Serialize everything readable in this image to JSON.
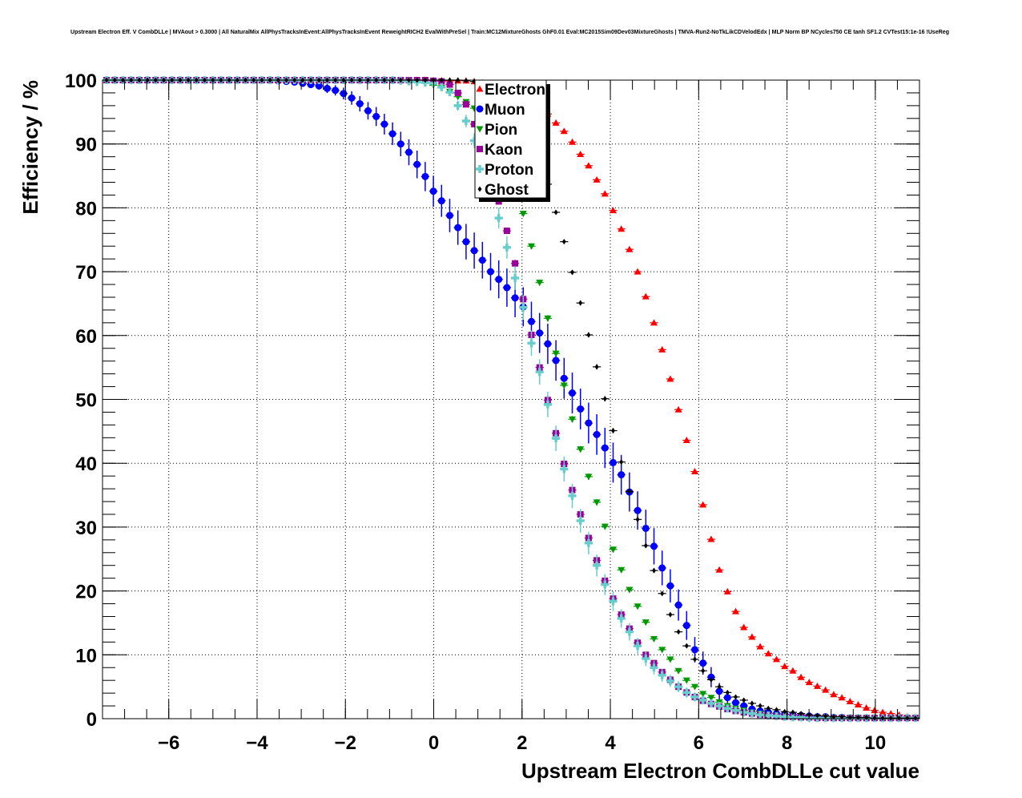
{
  "title": "Upstream Electron Eff. V CombDLLe | MVAout > 0.3000 | All NaturalMix AllPhysTracksInEvent:AllPhysTracksInEvent ReweightRICH2 EvalWithPreSel | Train:MC12MixtureGhosts GhF0.01 Eval:MC2015Sim09Dev03MixtureGhosts | TMVA-Run2-NoTkLikCDVelodEdx | MLP Norm BP NCycles750 CE tanh SF1.2 CVTest15:1e-16 !UseReg",
  "chart_data": {
    "type": "scatter",
    "title": "Upstream Electron Eff. V CombDLLe | MVAout > 0.3000 | All NaturalMix AllPhysTracksInEvent:AllPhysTracksInEvent ReweightRICH2 EvalWithPreSel | Train:MC12MixtureGhosts GhF0.01 Eval:MC2015Sim09Dev03MixtureGhosts | TMVA-Run2-NoTkLikCDVelodEdx | MLP Norm BP NCycles750 CE tanh SF1.2 CVTest15:1e-16 !UseReg",
    "xlabel": "Upstream Electron CombDLLe cut value",
    "ylabel": "Efficiency / %",
    "xlim": [
      -7.5,
      11
    ],
    "ylim": [
      0,
      100
    ],
    "grid": true,
    "legend_position": "top-center",
    "bins": {
      "start": -7.5,
      "end": 11,
      "count": 100
    },
    "xticks": [
      -6,
      -4,
      -2,
      0,
      2,
      4,
      6,
      8,
      10
    ],
    "xtick_labels": [
      "−6",
      "−4",
      "−2",
      "0",
      "2",
      "4",
      "6",
      "8",
      "10"
    ],
    "yticks": [
      0,
      10,
      20,
      30,
      40,
      50,
      60,
      70,
      80,
      90,
      100
    ],
    "ytick_labels": [
      "0",
      "10",
      "20",
      "30",
      "40",
      "50",
      "60",
      "70",
      "80",
      "90",
      "100"
    ],
    "series": [
      {
        "name": "Electron",
        "color": "#ff0000",
        "marker": "triangle-up",
        "err_scale": 0.02,
        "values": [
          100,
          100,
          100,
          100,
          100,
          100,
          100,
          100,
          100,
          100,
          100,
          100,
          100,
          100,
          100,
          100,
          100,
          100,
          100,
          100,
          100,
          100,
          100,
          100,
          100,
          100,
          100,
          100,
          100,
          100,
          100,
          100,
          100,
          100,
          100,
          100,
          100,
          100,
          100,
          100,
          99.9,
          99.9,
          99.9,
          99.9,
          99.9,
          99.8,
          99.6,
          99.3,
          98.9,
          98.4,
          97.8,
          97.2,
          96.5,
          95.7,
          94.7,
          93.3,
          92.0,
          90.3,
          88.4,
          86.6,
          84.4,
          82.2,
          79.6,
          76.7,
          73.5,
          70.0,
          66.1,
          62.0,
          57.8,
          53.2,
          48.4,
          43.6,
          38.7,
          33.5,
          28.1,
          23.3,
          19.9,
          16.8,
          14.3,
          12.8,
          11.3,
          10.2,
          9.3,
          8.2,
          7.5,
          6.5,
          5.7,
          5.1,
          4.5,
          3.8,
          3.3,
          2.7,
          2.2,
          1.7,
          1.3,
          1.0,
          0.8,
          0.6,
          0.3,
          0.1
        ]
      },
      {
        "name": "Muon",
        "color": "#0000ff",
        "marker": "circle",
        "err_scale": 0.32,
        "values": [
          100,
          100,
          100,
          100,
          100,
          100,
          100,
          100,
          100,
          100,
          100,
          100,
          100,
          100,
          100,
          100,
          100,
          100,
          100,
          100,
          100,
          99.9,
          99.8,
          99.7,
          99.5,
          99.3,
          99.1,
          98.7,
          98.4,
          97.9,
          97.2,
          96.3,
          95.2,
          94.3,
          93.1,
          91.6,
          90.0,
          88.7,
          86.8,
          84.9,
          82.6,
          81.1,
          78.8,
          76.9,
          74.7,
          73.3,
          71.8,
          70.0,
          68.8,
          67.5,
          65.9,
          64.5,
          62.2,
          60.4,
          58.7,
          56.1,
          53.3,
          51.0,
          48.5,
          46.3,
          44.5,
          42.4,
          40.1,
          38.2,
          35.5,
          32.6,
          29.8,
          27.0,
          23.6,
          20.8,
          17.8,
          14.6,
          10.8,
          8.7,
          6.5,
          4.3,
          3.3,
          2.5,
          2.0,
          1.5,
          1.2,
          1.0,
          0.8,
          0.7,
          0.6,
          0.5,
          0.4,
          0.3,
          0.3,
          0.2,
          0.2,
          0.1,
          0.1,
          0.1,
          0.1,
          0.1,
          0.1,
          0.1,
          0.1,
          0.1
        ]
      },
      {
        "name": "Pion",
        "color": "#009a00",
        "marker": "triangle-down",
        "err_scale": 0.05,
        "values": [
          100,
          100,
          100,
          100,
          100,
          100,
          100,
          100,
          100,
          100,
          100,
          100,
          100,
          100,
          100,
          100,
          100,
          100,
          100,
          100,
          100,
          100,
          100,
          100,
          100,
          100,
          100,
          100,
          100,
          100,
          100,
          100,
          100,
          100,
          100,
          99.9,
          99.9,
          99.8,
          99.7,
          99.6,
          99.2,
          98.8,
          98.2,
          97.4,
          96.6,
          95.6,
          94.4,
          92.8,
          90.5,
          87.5,
          83.5,
          79.1,
          74.0,
          68.3,
          62.7,
          57.2,
          52.2,
          46.9,
          42.2,
          37.9,
          33.9,
          30.1,
          26.5,
          23.3,
          20.2,
          17.6,
          15.1,
          12.5,
          10.8,
          9.3,
          7.5,
          6.0,
          5.0,
          3.9,
          3.3,
          2.6,
          2.0,
          1.6,
          1.3,
          1.0,
          0.8,
          0.6,
          0.5,
          0.4,
          0.3,
          0.3,
          0.2,
          0.2,
          0.2,
          0.1,
          0.1,
          0.1,
          0.1,
          0.1,
          0.1,
          0.1,
          0.1,
          0.1,
          0.1,
          0.1
        ]
      },
      {
        "name": "Kaon",
        "color": "#990099",
        "marker": "square",
        "err_scale": 0.06,
        "values": [
          100,
          100,
          100,
          100,
          100,
          100,
          100,
          100,
          100,
          100,
          100,
          100,
          100,
          100,
          100,
          100,
          100,
          100,
          100,
          100,
          100,
          100,
          100,
          100,
          100,
          100,
          100,
          100,
          100,
          100,
          100,
          100,
          100,
          100,
          100,
          100,
          100,
          100,
          100,
          100,
          99.9,
          99.8,
          99.3,
          98.0,
          96.2,
          93.1,
          89.3,
          85.2,
          81.0,
          76.4,
          71.3,
          65.7,
          60.1,
          55.0,
          49.9,
          44.7,
          39.9,
          35.8,
          32.0,
          28.3,
          24.8,
          21.6,
          18.8,
          16.3,
          14.1,
          11.9,
          10.0,
          8.7,
          7.3,
          6.1,
          5.0,
          4.1,
          3.4,
          2.8,
          2.3,
          1.9,
          1.5,
          1.2,
          1.0,
          0.8,
          0.6,
          0.5,
          0.4,
          0.3,
          0.3,
          0.2,
          0.2,
          0.1,
          0.1,
          0.1,
          0.1,
          0.1,
          0.1,
          0.1,
          0.1,
          0.1,
          0.1,
          0.1,
          0.1,
          0.1
        ]
      },
      {
        "name": "Proton",
        "color": "#66cccc",
        "marker": "cross",
        "err_scale": 0.2,
        "values": [
          100,
          100,
          100,
          100,
          100,
          100,
          100,
          100,
          100,
          100,
          100,
          100,
          100,
          100,
          100,
          100,
          100,
          100,
          100,
          100,
          100,
          100,
          100,
          100,
          100,
          100,
          100,
          100,
          100,
          100,
          100,
          100,
          100,
          100,
          100,
          100,
          99.9,
          99.8,
          99.7,
          99.6,
          99.5,
          98.9,
          98.1,
          96.0,
          93.6,
          90.5,
          86.5,
          82.5,
          78.4,
          73.8,
          69.0,
          64.4,
          58.8,
          54.3,
          49.2,
          43.9,
          39.1,
          34.9,
          31.0,
          27.5,
          24.0,
          21.0,
          18.4,
          15.7,
          13.6,
          11.4,
          9.4,
          8.0,
          6.8,
          5.9,
          5.0,
          4.1,
          3.4,
          2.9,
          2.4,
          2.0,
          1.6,
          1.3,
          1.0,
          0.8,
          0.6,
          0.5,
          0.4,
          0.3,
          0.2,
          0.2,
          0.1,
          0.1,
          0.1,
          0.1,
          0.1,
          0.1,
          0.1,
          0.1,
          0.1,
          0.1,
          0.1,
          0.1,
          0.1,
          0.1
        ]
      },
      {
        "name": "Ghost",
        "color": "#000000",
        "marker": "diamond",
        "err_scale": 0.04,
        "values": [
          100,
          100,
          100,
          100,
          100,
          100,
          100,
          100,
          100,
          100,
          100,
          100,
          100,
          100,
          100,
          100,
          100,
          100,
          100,
          100,
          100,
          100,
          100,
          100,
          100,
          100,
          100,
          100,
          100,
          100,
          100,
          100,
          100,
          100,
          100,
          100,
          100,
          100,
          100,
          100,
          100,
          100,
          100,
          100,
          99.9,
          99.8,
          99.6,
          99.2,
          98.4,
          97.2,
          95.6,
          93.5,
          90.8,
          87.6,
          83.7,
          79.3,
          74.7,
          69.9,
          65.1,
          60.1,
          55.1,
          50.1,
          45.1,
          40.2,
          35.6,
          31.2,
          27.1,
          23.2,
          19.6,
          16.3,
          13.6,
          11.4,
          9.3,
          7.5,
          6.1,
          5.0,
          4.1,
          3.4,
          2.9,
          2.4,
          2.0,
          1.6,
          1.4,
          1.1,
          1.0,
          0.8,
          0.6,
          0.5,
          0.4,
          0.3,
          0.3,
          0.2,
          0.2,
          0.2,
          0.1,
          0.1,
          0.1,
          0.1,
          0.1,
          0.1
        ]
      }
    ]
  }
}
